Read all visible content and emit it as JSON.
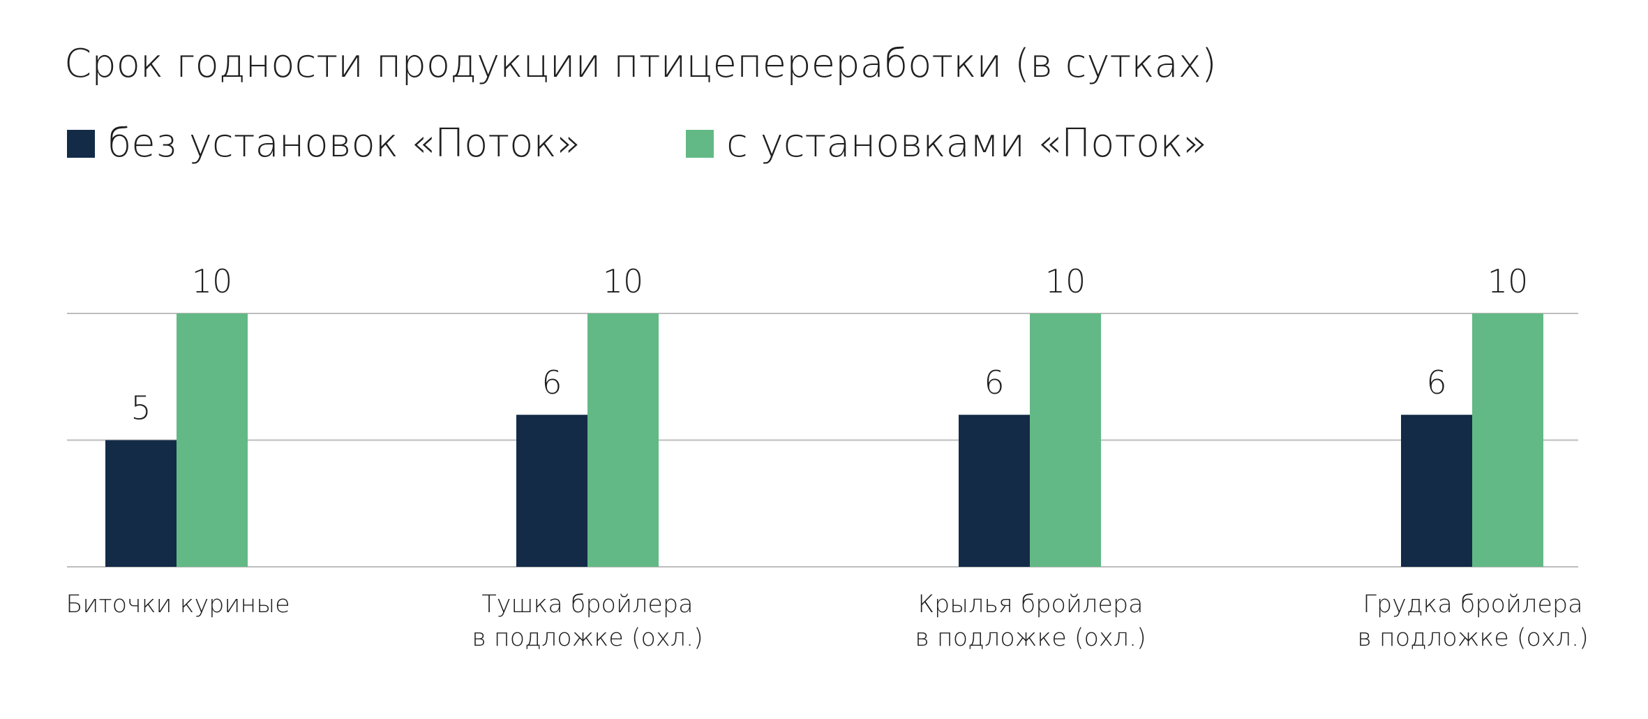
{
  "title": "Срок годности продукции птицепереработки (в сутках)",
  "legend": [
    {
      "label": "без установок «Поток»",
      "color": "#132b47"
    },
    {
      "label": "с установками «Поток»",
      "color": "#62b985"
    }
  ],
  "chart_data": {
    "type": "bar",
    "title": "Срок годности продукции птицепереработки (в сутках)",
    "categories": [
      [
        "Биточки куриные"
      ],
      [
        "Тушка бройлера",
        "в подложке (охл.)"
      ],
      [
        "Крылья бройлера",
        "в подложке (охл.)"
      ],
      [
        "Грудка бройлера",
        "в подложке (охл.)"
      ]
    ],
    "series": [
      {
        "name": "без установок «Поток»",
        "color": "#132b47",
        "values": [
          5,
          6,
          6,
          6
        ]
      },
      {
        "name": "с установками «Поток»",
        "color": "#62b985",
        "values": [
          10,
          10,
          10,
          10
        ]
      }
    ],
    "ylim": [
      0,
      10
    ],
    "gridlines": [
      0,
      5,
      10
    ],
    "data_labels": true,
    "legend_position": "top-left",
    "xlabel": "",
    "ylabel": ""
  }
}
